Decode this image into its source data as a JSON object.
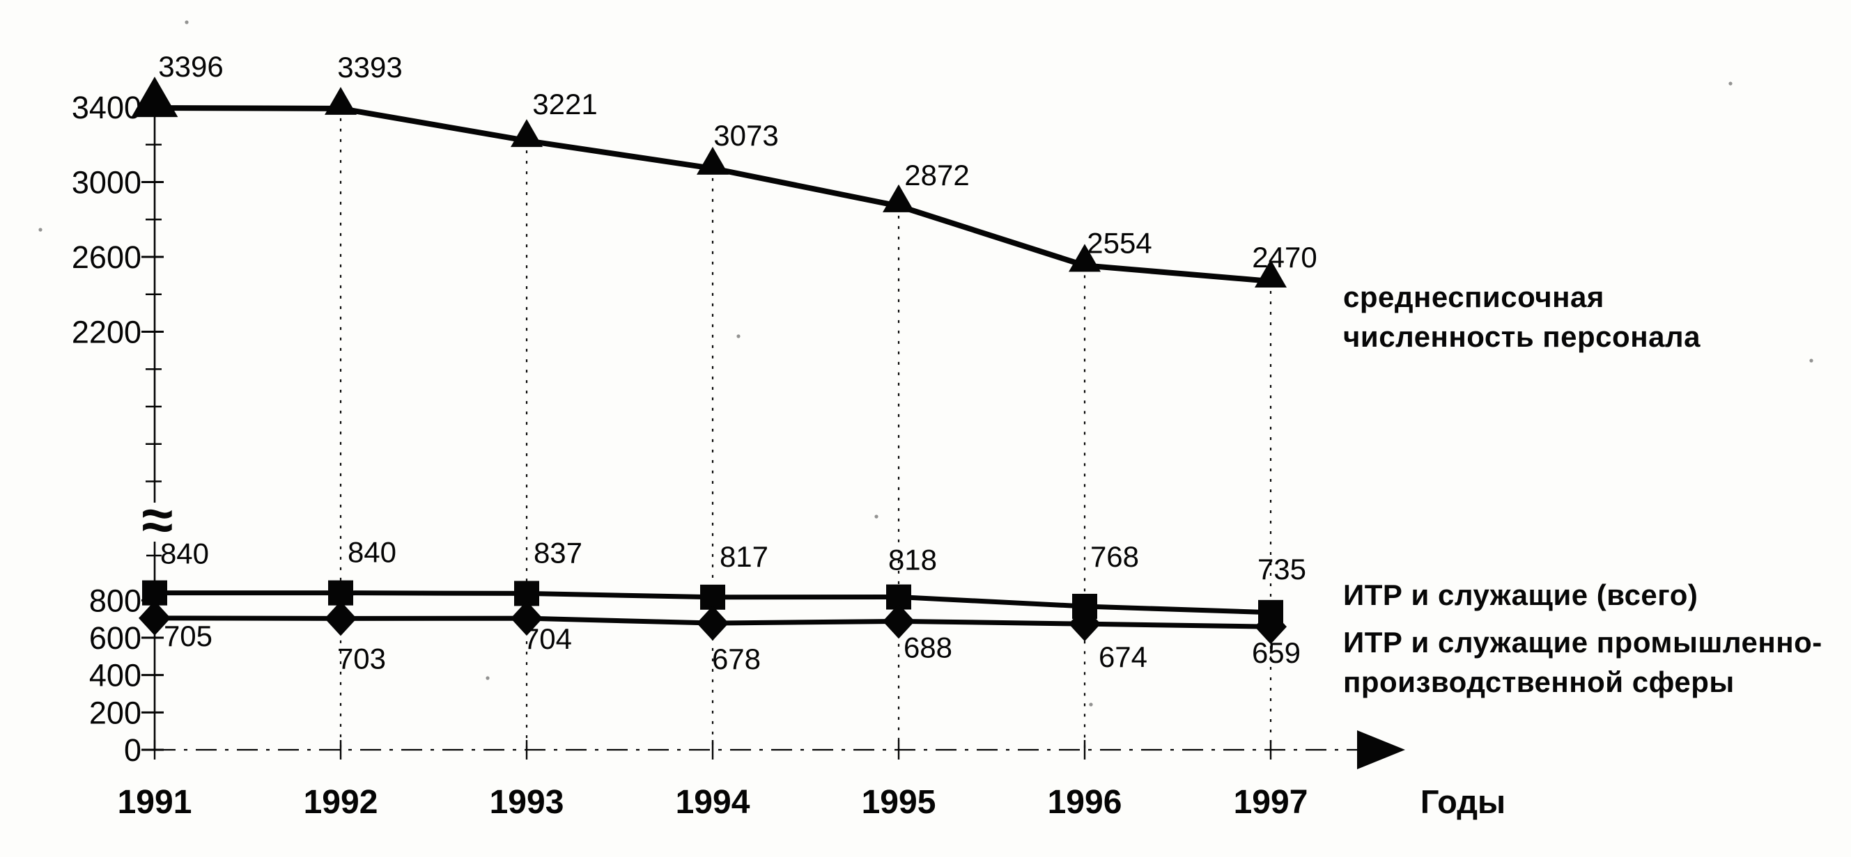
{
  "chart_data": {
    "type": "line",
    "categories": [
      "1991",
      "1992",
      "1993",
      "1994",
      "1995",
      "1996",
      "1997"
    ],
    "x_axis_label": "Годы",
    "y_axis_break_symbol": "≈",
    "upper_axis_ticks": [
      3400,
      3000,
      2600,
      2200
    ],
    "upper_axis_minor_ticks": [
      3200,
      2800,
      2400,
      2000,
      1800,
      1600,
      1400
    ],
    "lower_axis_ticks": [
      800,
      600,
      400,
      200,
      0
    ],
    "series": [
      {
        "name": "среднесписочная численность персонала",
        "marker": "triangle",
        "axis": "upper",
        "values": [
          3396,
          3393,
          3221,
          3073,
          2872,
          2554,
          2470
        ]
      },
      {
        "name": "ИТР и служащие (всего)",
        "marker": "square",
        "axis": "lower",
        "values": [
          840,
          840,
          837,
          817,
          818,
          768,
          735
        ]
      },
      {
        "name": "ИТР и служащие промышленно-производственной сферы",
        "marker": "diamond",
        "axis": "lower",
        "values": [
          705,
          703,
          704,
          678,
          688,
          674,
          659
        ]
      }
    ],
    "grid": "vertical-dotted",
    "legend_position": "right",
    "axis_ranges": {
      "upper": [
        2200,
        3400
      ],
      "lower": [
        0,
        840
      ]
    },
    "colors": {
      "ink": "#050505",
      "background": "#fdfdfb"
    }
  },
  "legend": {
    "series1": [
      "среднесписочная",
      "численность персонала"
    ],
    "series2": [
      "ИТР и служащие (всего)"
    ],
    "series3": [
      "ИТР и служащие промышленно-",
      "производственной сферы"
    ]
  }
}
